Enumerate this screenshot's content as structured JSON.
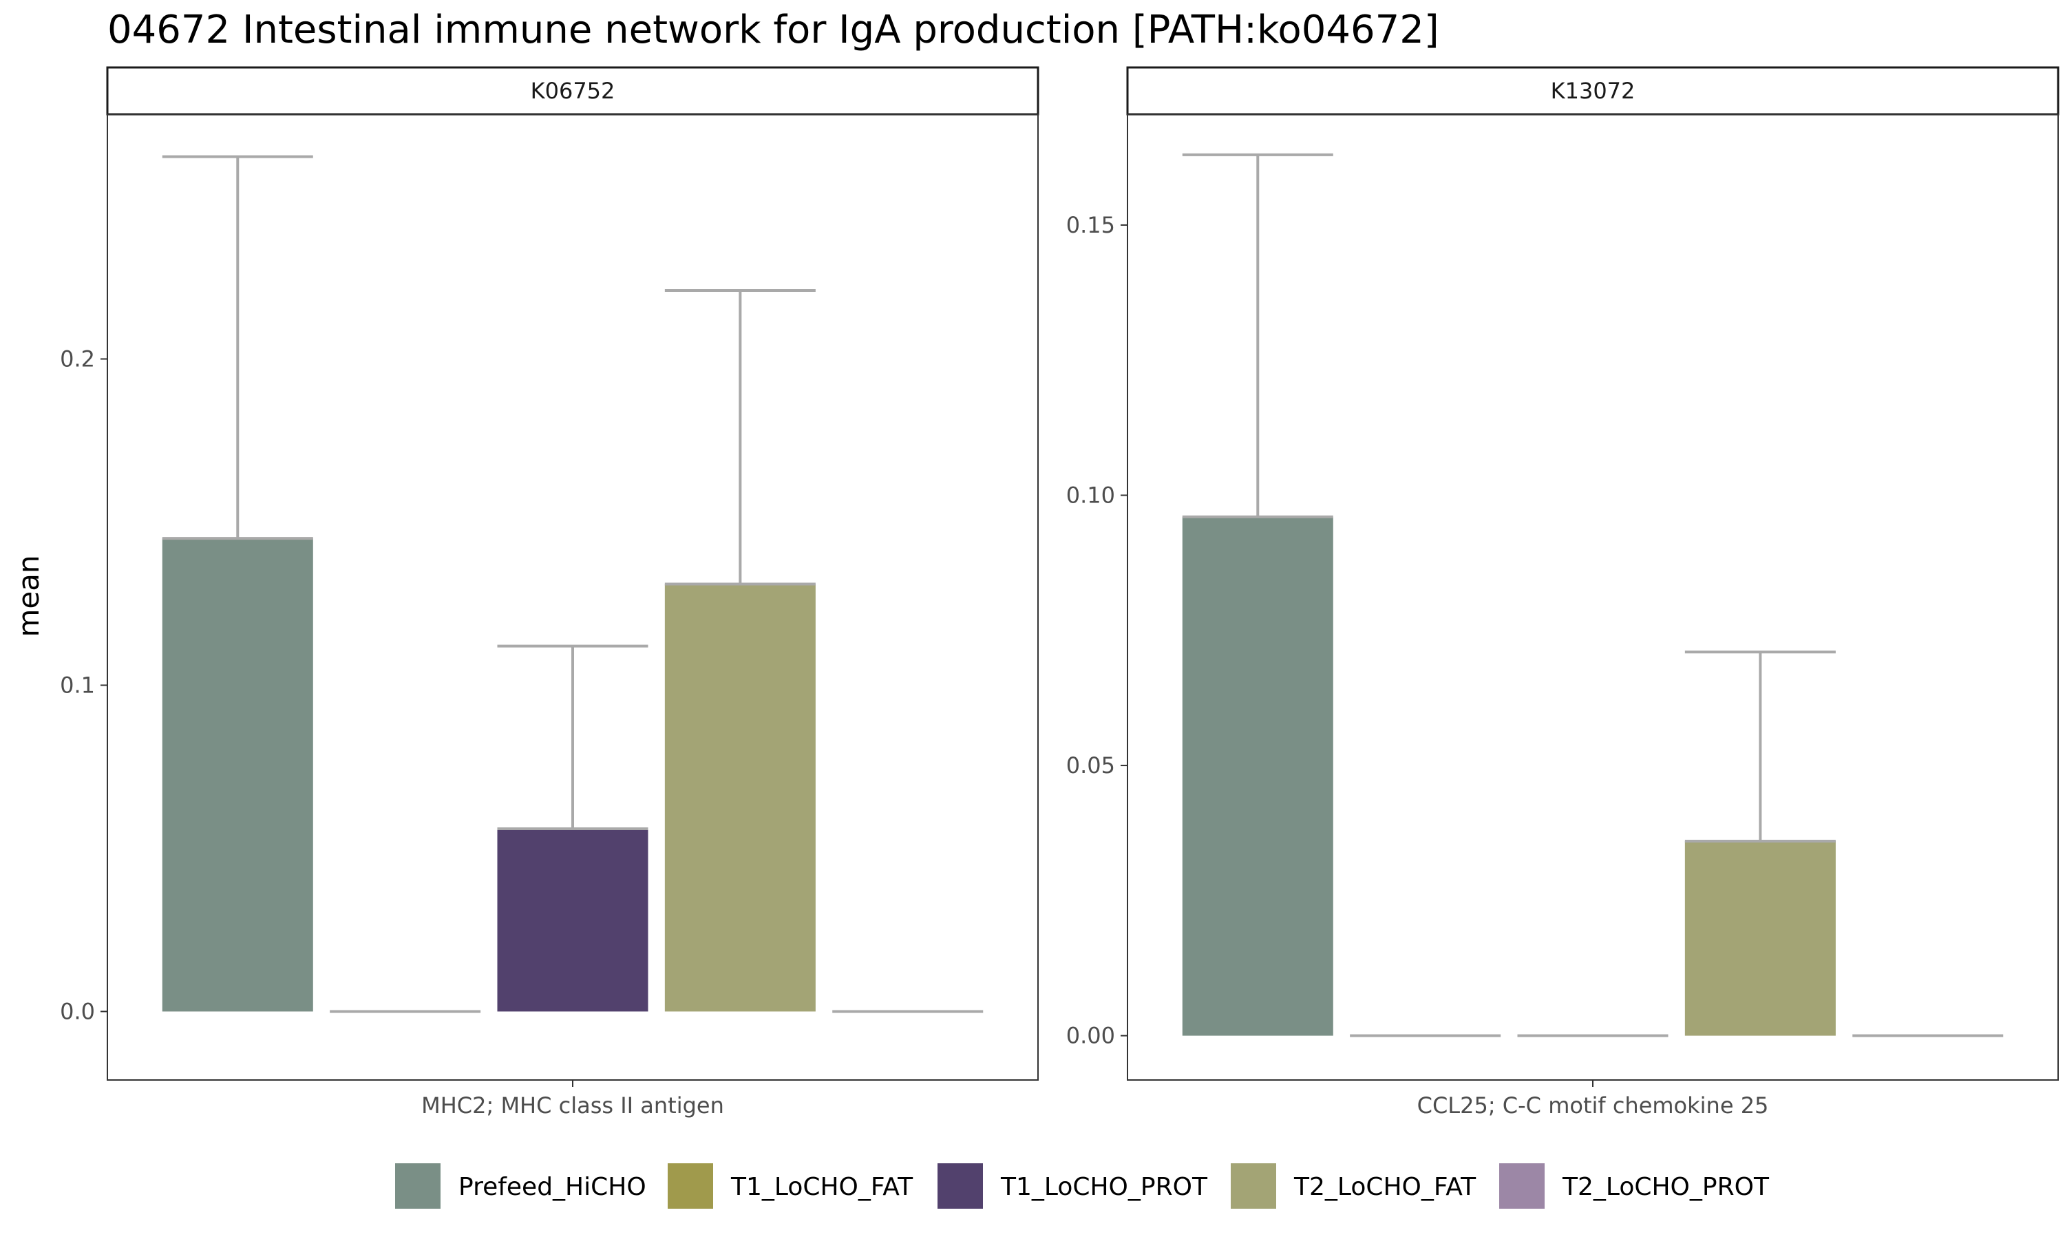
{
  "chart_data": {
    "type": "bar",
    "title": "04672 Intestinal immune network for IgA production [PATH:ko04672]",
    "ylabel": "mean",
    "legend_position": "bottom",
    "grid": false,
    "series_names": [
      "Prefeed_HiCHO",
      "T1_LoCHO_FAT",
      "T1_LoCHO_PROT",
      "T2_LoCHO_FAT",
      "T2_LoCHO_PROT"
    ],
    "series_colors": [
      "#7a8f86",
      "#a09a4c",
      "#52416d",
      "#a3a475",
      "#9c87a6"
    ],
    "error_bar_color": "#a9a9a9",
    "panels": [
      {
        "strip": "K06752",
        "category": "MHC2; MHC class II antigen",
        "ylim": [
          -0.021,
          0.275
        ],
        "yticks": [
          0.0,
          0.1,
          0.2
        ],
        "ytick_labels": [
          "0.0",
          "0.1",
          "0.2"
        ],
        "values": [
          0.145,
          0.0,
          0.056,
          0.131,
          0.0
        ],
        "error_upper": [
          0.262,
          0.0,
          0.112,
          0.221,
          0.0
        ]
      },
      {
        "strip": "K13072",
        "category": "CCL25; C-C motif chemokine 25",
        "ylim": [
          -0.0082,
          0.1705
        ],
        "yticks": [
          0.0,
          0.05,
          0.1,
          0.15
        ],
        "ytick_labels": [
          "0.00",
          "0.05",
          "0.10",
          "0.15"
        ],
        "values": [
          0.096,
          0.0,
          0.0,
          0.036,
          0.0
        ],
        "error_upper": [
          0.163,
          0.0,
          0.0,
          0.071,
          0.0
        ]
      }
    ]
  }
}
